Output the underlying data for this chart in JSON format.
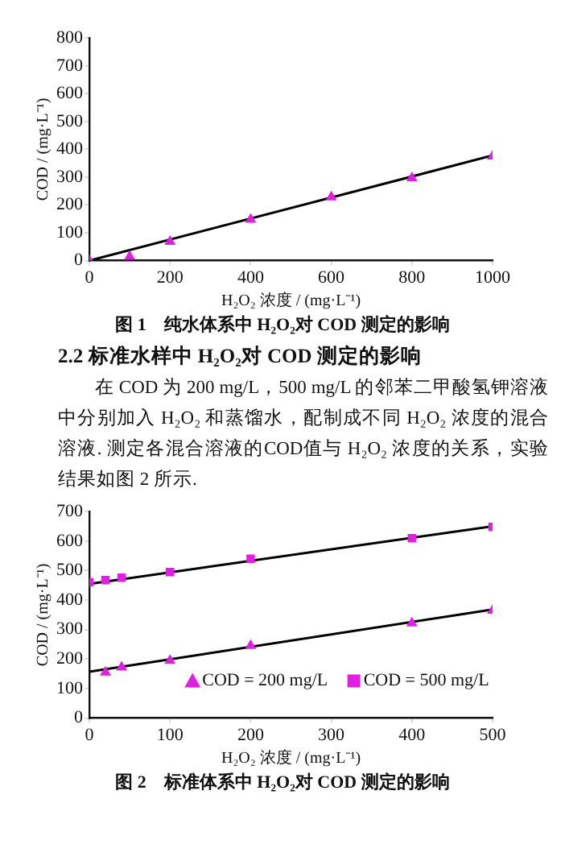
{
  "chart_data": [
    {
      "type": "scatter",
      "title": "图 1　纯水体系中 H₂O₂对 COD 测定的影响",
      "xlabel": "H₂O₂ 浓度 / (mg·L⁻¹)",
      "ylabel": "COD / (mg·L⁻¹)",
      "xlim": [
        0,
        1000
      ],
      "xticks": [
        0,
        200,
        400,
        600,
        800,
        1000
      ],
      "ylim": [
        0,
        800
      ],
      "yticks": [
        0,
        100,
        200,
        300,
        400,
        500,
        600,
        700,
        800
      ],
      "grid": false,
      "series": [
        {
          "type": "scatter",
          "color": "#e020e0",
          "marker": "triangle",
          "x": [
            0,
            100,
            200,
            400,
            600,
            800,
            1000
          ],
          "values": [
            0,
            15,
            68,
            148,
            228,
            297,
            375
          ]
        },
        {
          "type": "line",
          "color": "#000000",
          "marker": "none",
          "x": [
            0,
            1000
          ],
          "values": [
            0,
            378
          ]
        }
      ]
    },
    {
      "type": "scatter",
      "title": "图 2　标准体系中 H₂O₂对 COD 测定的影响",
      "xlabel": "H₂O₂ 浓度 / (mg·L⁻¹)",
      "ylabel": "COD / (mg·L⁻¹)",
      "xlim": [
        0,
        500
      ],
      "xticks": [
        0,
        100,
        200,
        300,
        400,
        500
      ],
      "ylim": [
        0,
        700
      ],
      "yticks": [
        0,
        100,
        200,
        300,
        400,
        500,
        600,
        700
      ],
      "grid": false,
      "legend": "bottom",
      "annotations": [
        "2.2 标准水样中 H₂O₂对 COD 测定的影响",
        "在 COD 为 200 mg/L，500 mg/L 的邻苯二甲酸氢钾溶液中分别加入 H₂O₂ 和蒸馏水，配制成不同 H₂O₂ 浓度的混合溶液. 测定各混合溶液的COD值与 H₂O₂ 浓度的关系，实验结果如图 2 所示."
      ],
      "series": [
        {
          "type": "scatter",
          "name": "COD = 200 mg/L",
          "color": "#e020e0",
          "marker": "triangle",
          "x": [
            20,
            40,
            100,
            200,
            400,
            500
          ],
          "values": [
            155,
            172,
            195,
            245,
            322,
            365
          ]
        },
        {
          "type": "scatter",
          "name": "COD = 500 mg/L",
          "color": "#e020e0",
          "marker": "square",
          "x": [
            0,
            20,
            40,
            100,
            200,
            400,
            500
          ],
          "values": [
            460,
            468,
            476,
            495,
            540,
            610,
            648
          ]
        },
        {
          "type": "line",
          "color": "#000000",
          "marker": "none",
          "x": [
            0,
            500
          ],
          "values": [
            157,
            368
          ]
        },
        {
          "type": "line",
          "color": "#000000",
          "marker": "none",
          "x": [
            0,
            500
          ],
          "values": [
            455,
            650
          ]
        }
      ]
    }
  ]
}
